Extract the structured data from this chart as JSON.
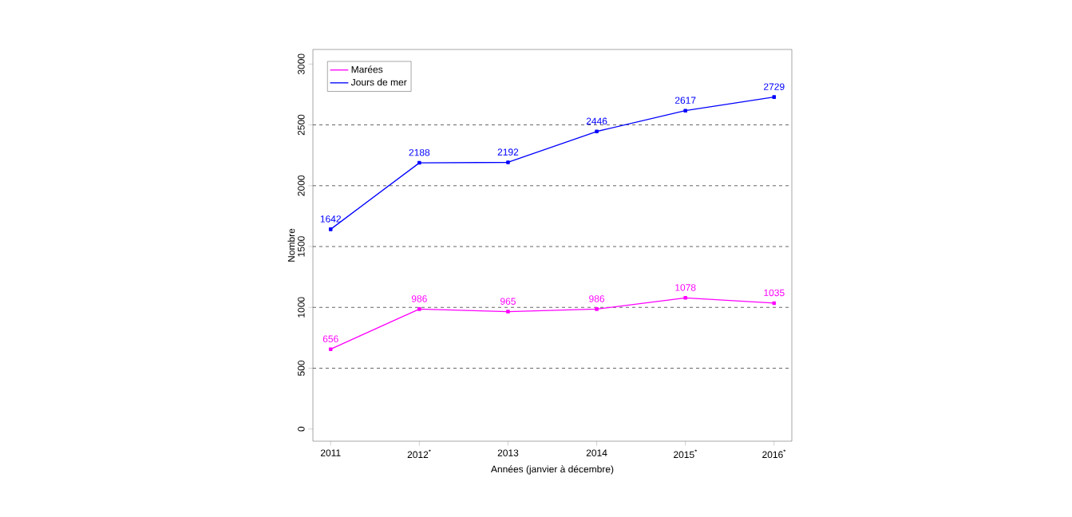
{
  "chart_data": {
    "type": "line",
    "xlabel": "Années (janvier à décembre)",
    "ylabel": "Nombre",
    "categories": [
      "2011",
      "2012$^{*}$",
      "2013",
      "2014",
      "2015$^{*}$",
      "2016$^{*}$"
    ],
    "series": [
      {
        "name": "Marées",
        "color": "#ff00ff",
        "values": [
          656,
          986,
          965,
          986,
          1078,
          1035
        ]
      },
      {
        "name": "Jours de mer",
        "color": "#0000ff",
        "values": [
          1642,
          2188,
          2192,
          2446,
          2617,
          2729
        ]
      }
    ],
    "ylim": [
      -100,
      3120
    ],
    "yticks": [
      0,
      500,
      1000,
      1500,
      2000,
      2500,
      3000
    ],
    "ref_lines": [
      {
        "axis": "y",
        "value": 500,
        "line_style": "dashed",
        "color": "#404040"
      },
      {
        "axis": "y",
        "value": 1000,
        "line_style": "dashed",
        "color": "#404040"
      },
      {
        "axis": "y",
        "value": 1500,
        "line_style": "dashed",
        "color": "#404040"
      },
      {
        "axis": "y",
        "value": 2000,
        "line_style": "dashed",
        "color": "#404040"
      },
      {
        "axis": "y",
        "value": 2500,
        "line_style": "dashed",
        "color": "#404040"
      }
    ],
    "legend": "top left",
    "marker": "square",
    "line_style": "solid",
    "data_labels": true
  }
}
